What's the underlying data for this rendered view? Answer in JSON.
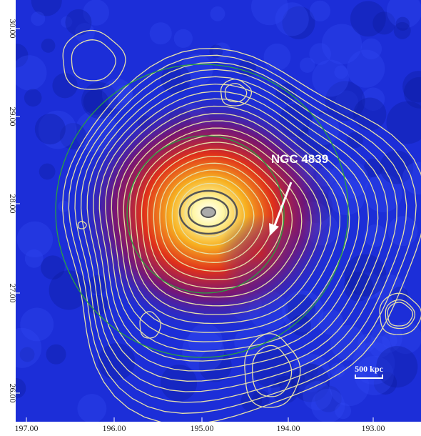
{
  "annotations": {
    "object_label": "NGC 4839",
    "scale_bar": "500 kpc"
  },
  "x_axis": {
    "tick_labels": [
      "197.00",
      "196.00",
      "195.00",
      "194.00",
      "193.00"
    ]
  },
  "y_axis": {
    "tick_labels": [
      "30.00",
      "29.00",
      "28.00",
      "27.00",
      "26.00"
    ]
  }
}
